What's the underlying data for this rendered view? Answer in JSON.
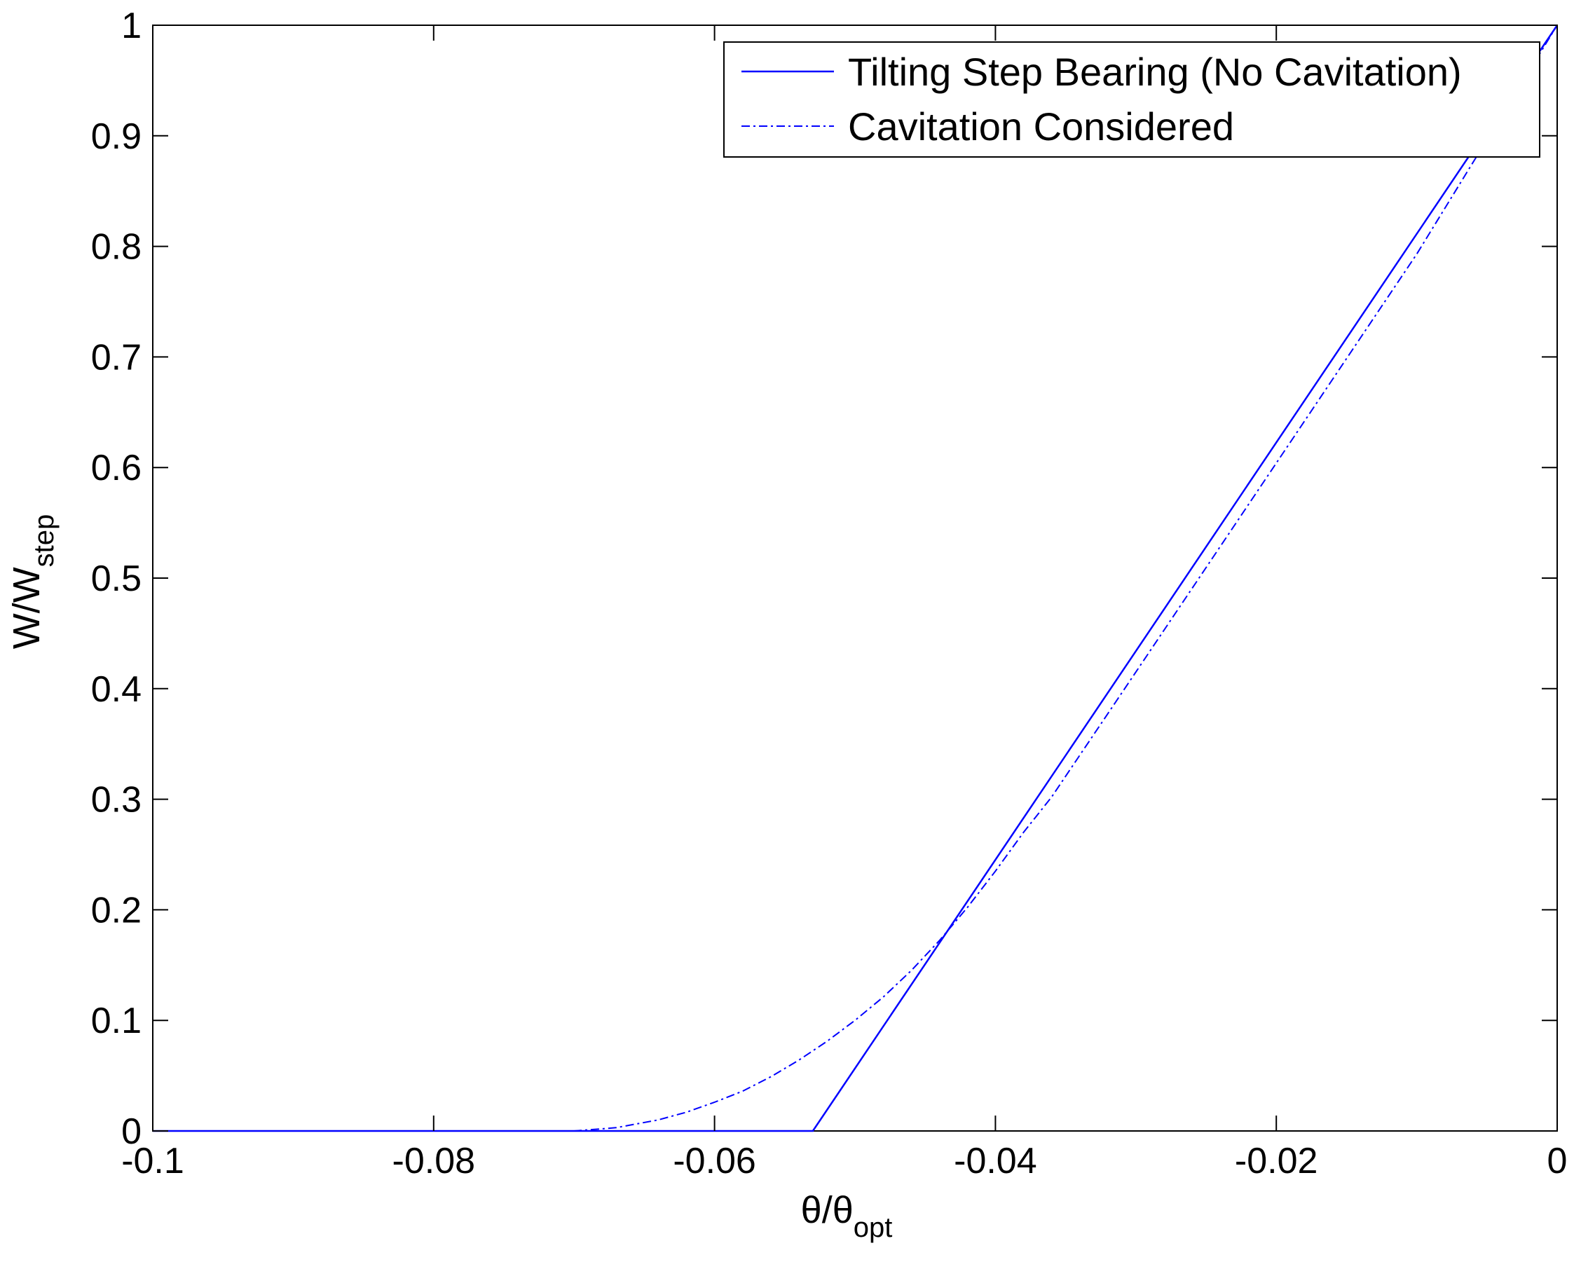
{
  "chart_data": {
    "type": "line",
    "xlabel": {
      "main": "θ/θ",
      "sub": "opt"
    },
    "ylabel": {
      "main": "W/W",
      "sub": "step"
    },
    "xlim": [
      -0.1,
      0
    ],
    "ylim": [
      0,
      1
    ],
    "xticks": [
      -0.1,
      -0.08,
      -0.06,
      -0.04,
      -0.02,
      0
    ],
    "xtick_labels": [
      "-0.1",
      "-0.08",
      "-0.06",
      "-0.04",
      "-0.02",
      "0"
    ],
    "yticks": [
      0,
      0.1,
      0.2,
      0.3,
      0.4,
      0.5,
      0.6,
      0.7,
      0.8,
      0.9,
      1
    ],
    "ytick_labels": [
      "0",
      "0.1",
      "0.2",
      "0.3",
      "0.4",
      "0.5",
      "0.6",
      "0.7",
      "0.8",
      "0.9",
      "1"
    ],
    "grid": false,
    "legend_position": "top-right",
    "series": [
      {
        "name": "Tilting Step Bearing (No Cavitation)",
        "style": "solid",
        "color": "#0000ff",
        "x": [
          -0.1,
          -0.053,
          -0.053,
          0
        ],
        "y": [
          0,
          0,
          0,
          1
        ]
      },
      {
        "name": "Cavitation Considered",
        "style": "dashdot",
        "color": "#0000ff",
        "x": [
          -0.1,
          -0.08,
          -0.07,
          -0.067,
          -0.064,
          -0.062,
          -0.06,
          -0.058,
          -0.056,
          -0.054,
          -0.052,
          -0.05,
          -0.048,
          -0.046,
          -0.044,
          -0.042,
          -0.04,
          -0.038,
          -0.036,
          -0.03,
          -0.02,
          -0.01,
          0
        ],
        "y": [
          0,
          0,
          0,
          0.003,
          0.01,
          0.017,
          0.026,
          0.036,
          0.049,
          0.064,
          0.081,
          0.1,
          0.121,
          0.145,
          0.172,
          0.202,
          0.235,
          0.27,
          0.302,
          0.415,
          0.604,
          0.793,
          1
        ]
      }
    ]
  }
}
